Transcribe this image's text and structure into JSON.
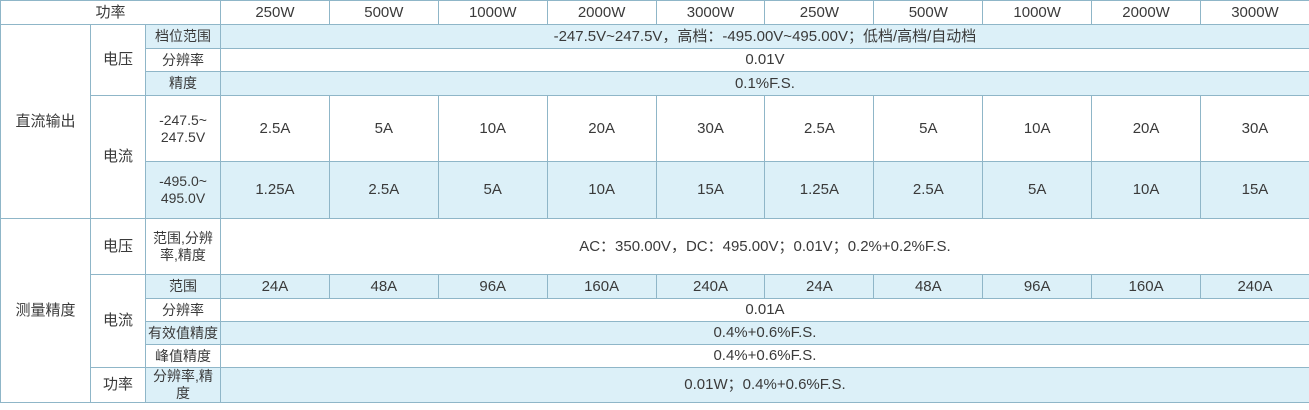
{
  "header": {
    "label": "功率",
    "powers": [
      "250W",
      "500W",
      "1000W",
      "2000W",
      "3000W",
      "250W",
      "500W",
      "1000W",
      "2000W",
      "3000W"
    ]
  },
  "dc_output": {
    "label": "直流输出",
    "voltage": {
      "label": "电压",
      "rows": [
        {
          "param": "档位范围",
          "value": "-247.5V~247.5V，高档：-495.00V~495.00V；低档/高档/自动档"
        },
        {
          "param": "分辨率",
          "value": "0.01V"
        },
        {
          "param": "精度",
          "value": "0.1%F.S."
        }
      ]
    },
    "current": {
      "label": "电流",
      "rows": [
        {
          "param": "-247.5~\n247.5V",
          "values": [
            "2.5A",
            "5A",
            "10A",
            "20A",
            "30A",
            "2.5A",
            "5A",
            "10A",
            "20A",
            "30A"
          ]
        },
        {
          "param": "-495.0~\n495.0V",
          "values": [
            "1.25A",
            "2.5A",
            "5A",
            "10A",
            "15A",
            "1.25A",
            "2.5A",
            "5A",
            "10A",
            "15A"
          ]
        }
      ]
    }
  },
  "measurement": {
    "label": "测量精度",
    "voltage": {
      "label": "电压",
      "param": "范围,分辨率,精度",
      "value": "AC：350.00V，DC：495.00V；0.01V；0.2%+0.2%F.S."
    },
    "current": {
      "label": "电流",
      "range": {
        "param": "范围",
        "values": [
          "24A",
          "48A",
          "96A",
          "160A",
          "240A",
          "24A",
          "48A",
          "96A",
          "160A",
          "240A"
        ]
      },
      "rows": [
        {
          "param": "分辨率",
          "value": "0.01A"
        },
        {
          "param": "有效值精度",
          "value": "0.4%+0.6%F.S."
        },
        {
          "param": "峰值精度",
          "value": "0.4%+0.6%F.S."
        }
      ]
    },
    "power": {
      "label": "功率",
      "param": "分辨率,精度",
      "value": "0.01W；0.4%+0.6%F.S."
    }
  }
}
